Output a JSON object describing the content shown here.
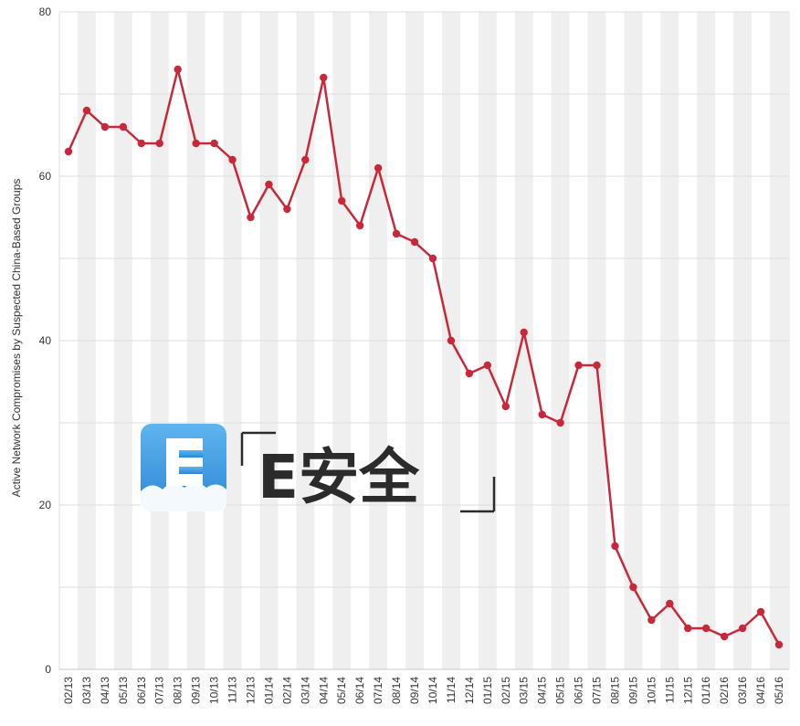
{
  "chart_data": {
    "type": "line",
    "title": "",
    "xlabel": "",
    "ylabel": "Active Network Compromises by Suspected China-Based Groups",
    "ylim": [
      0,
      80
    ],
    "yticks": [
      0,
      20,
      40,
      60,
      80
    ],
    "grid": true,
    "legend": "none",
    "colors": {
      "line": "#c8283a",
      "marker": "#c8283a",
      "grid": "#dcdcdc",
      "band": "#efefef"
    },
    "categories": [
      "02/13",
      "03/13",
      "04/13",
      "05/13",
      "06/13",
      "07/13",
      "08/13",
      "09/13",
      "10/13",
      "11/13",
      "12/13",
      "01/14",
      "02/14",
      "03/14",
      "04/14",
      "05/14",
      "06/14",
      "07/14",
      "08/14",
      "09/14",
      "10/14",
      "11/14",
      "12/14",
      "01/15",
      "02/15",
      "03/15",
      "04/15",
      "05/15",
      "06/15",
      "07/15",
      "08/15",
      "09/15",
      "10/15",
      "11/15",
      "12/15",
      "01/16",
      "02/16",
      "03/16",
      "04/16",
      "05/16"
    ],
    "tick_labels": [
      "02/13",
      "03/13",
      "04/13",
      "05/13",
      "06/13",
      "07/13",
      "08/13",
      "09/13",
      "10/13",
      "11/13",
      "12/13",
      "01/14",
      "02/14",
      "03/14",
      "04/14",
      "05/14",
      "06/14",
      "07/14",
      "08/14",
      "09/14",
      "10/14",
      "11/14",
      "12/14",
      "01/15",
      "02/15",
      "03/15",
      "04/15",
      "05/15",
      "06/15",
      "07/15",
      "08/15",
      "09/15",
      "10/15",
      "11/15",
      "12/15",
      "01/16",
      "02/16",
      "03/16",
      "04/16",
      "05/16"
    ],
    "series": [
      {
        "values": [
          63,
          68,
          66,
          66,
          64,
          64,
          73,
          64,
          64,
          62,
          55,
          59,
          56,
          62,
          72,
          57,
          54,
          61,
          53,
          52,
          50,
          40,
          36,
          37,
          32,
          41,
          31,
          30,
          37,
          37,
          15,
          10,
          6,
          8,
          5,
          5,
          4,
          5,
          7,
          3
        ]
      }
    ]
  },
  "watermark": {
    "letter": "E",
    "text": "E安全",
    "bracket_open": "「",
    "bracket_close": "」"
  }
}
